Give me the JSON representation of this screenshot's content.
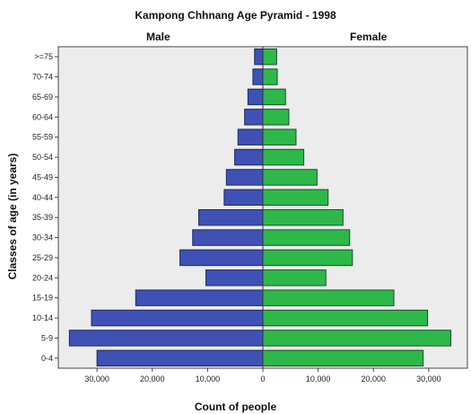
{
  "chart_data": {
    "type": "bar",
    "orientation": "horizontal-pyramid",
    "title": "Kampong Chhnang Age Pyramid - 1998",
    "xlabel": "Count of people",
    "ylabel": "Classes of age (in years)",
    "categories": [
      "0-4",
      "5-9",
      "10-14",
      "15-19",
      "20-24",
      "25-29",
      "30-34",
      "35-39",
      "40-44",
      "45-49",
      "50-54",
      "55-59",
      "60-64",
      "65-69",
      "70-74",
      ">=75"
    ],
    "series": [
      {
        "name": "Male",
        "color": "#3f51b5",
        "values": [
          30000,
          35000,
          31000,
          23000,
          10300,
          15000,
          12700,
          11600,
          7000,
          6600,
          5100,
          4500,
          3300,
          2700,
          1800,
          1500
        ]
      },
      {
        "name": "Female",
        "color": "#2eb84a",
        "values": [
          29000,
          34000,
          29800,
          23700,
          11400,
          16200,
          15700,
          14500,
          11800,
          9800,
          7400,
          6000,
          4700,
          4100,
          2600,
          2500
        ]
      }
    ],
    "x_ticks": [
      "30,000",
      "20,000",
      "10,000",
      "0",
      "10,000",
      "20,000",
      "30,000"
    ],
    "xlim": [
      -37000,
      37000
    ],
    "grid": false,
    "background": "#ececec"
  }
}
